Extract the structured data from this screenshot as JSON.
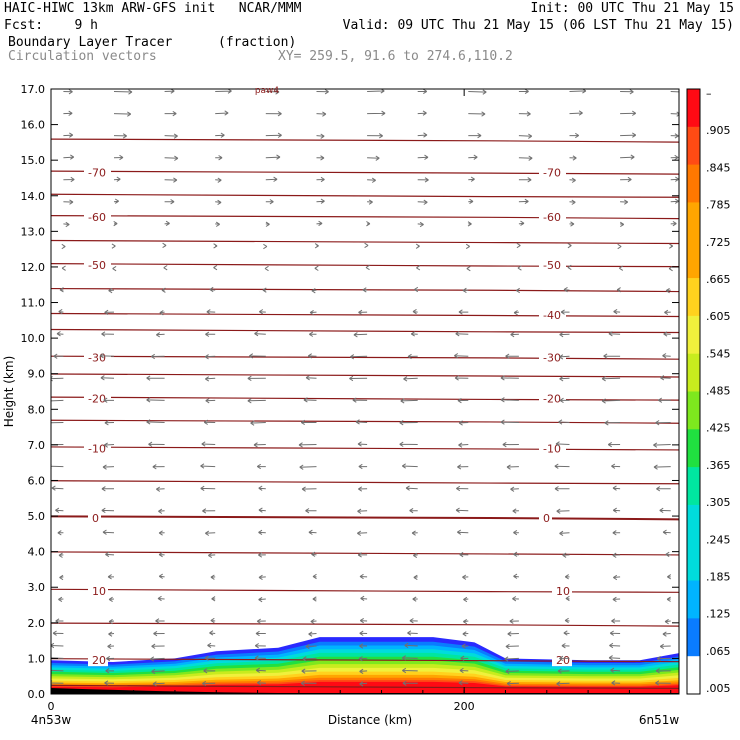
{
  "header": {
    "line1_left": "HAIC-HIWC 13km ARW-GFS init   NCAR/MMM",
    "line1_right": "Init: 00 UTC Thu 21 May 15",
    "line2_left": "Fcst:    9 h",
    "line2_right": "Valid: 09 UTC Thu 21 May 15 (06 LST Thu 21 May 15)",
    "field_name": "Boundary Layer Tracer",
    "field_units": "(fraction)",
    "vector_name": "Circulation vectors",
    "xy_range": "XY= 259.5, 91.6 to 274.6,110.2"
  },
  "colors": {
    "isotherm": "#8b1a1a",
    "vectors": "#707070",
    "ramp": [
      "#ffffff",
      "#2a2aff",
      "#0a7cff",
      "#00b4ff",
      "#00dcdc",
      "#00e6a0",
      "#20e040",
      "#7ee81e",
      "#c8ec1e",
      "#f0f03c",
      "#ffd21e",
      "#ffa500",
      "#ff7800",
      "#ff4b14",
      "#ff0a14"
    ]
  },
  "chart_data": {
    "type": "cross-section",
    "xlabel": "Distance (km)",
    "ylabel": "Height (km)",
    "xlim": [
      0,
      304
    ],
    "ylim": [
      0,
      17
    ],
    "x_ticks": [
      {
        "value": 0,
        "label": "0"
      },
      {
        "value": 200,
        "label": "200"
      }
    ],
    "x_end_labels": [
      "4n53w",
      "6n51w"
    ],
    "y_ticks": [
      "0.0",
      "1.0",
      "2.0",
      "3.0",
      "4.0",
      "5.0",
      "6.0",
      "7.0",
      "8.0",
      "9.0",
      "10.0",
      "11.0",
      "12.0",
      "13.0",
      "14.0",
      "15.0",
      "16.0",
      "17.0"
    ],
    "top_label": "paw4",
    "colorbar": {
      "labels": [
        "–",
        ".905",
        ".845",
        ".785",
        ".725",
        ".665",
        ".605",
        ".545",
        ".485",
        ".425",
        ".365",
        ".305",
        ".245",
        ".185",
        ".125",
        ".065",
        ".005"
      ],
      "range": [
        0.005,
        0.965
      ]
    },
    "isotherms": [
      {
        "height": 0.2,
        "label": "",
        "left": false,
        "right": false
      },
      {
        "height": 0.95,
        "label": "20",
        "left": true,
        "right": true
      },
      {
        "height": 1.95,
        "label": "",
        "left": false,
        "right": false
      },
      {
        "height": 2.9,
        "label": "10",
        "left": true,
        "right": true
      },
      {
        "height": 3.95,
        "label": "",
        "left": false,
        "right": false
      },
      {
        "height": 4.95,
        "label": "0",
        "left": true,
        "right": true
      },
      {
        "height": 5.95,
        "label": "",
        "left": false,
        "right": false
      },
      {
        "height": 6.9,
        "label": "-10",
        "left": true,
        "right": true
      },
      {
        "height": 7.65,
        "label": "",
        "left": false,
        "right": false
      },
      {
        "height": 8.3,
        "label": "-20",
        "left": true,
        "right": true
      },
      {
        "height": 8.95,
        "label": "",
        "left": false,
        "right": false
      },
      {
        "height": 9.45,
        "label": "-30",
        "left": true,
        "right": true
      },
      {
        "height": 10.2,
        "label": "",
        "left": false,
        "right": false
      },
      {
        "height": 10.65,
        "label": "-40",
        "left": false,
        "right": true
      },
      {
        "height": 11.35,
        "label": "",
        "left": false,
        "right": false
      },
      {
        "height": 12.05,
        "label": "-50",
        "left": true,
        "right": true
      },
      {
        "height": 12.7,
        "label": "",
        "left": false,
        "right": false
      },
      {
        "height": 13.4,
        "label": "-60",
        "left": true,
        "right": true
      },
      {
        "height": 14.0,
        "label": "",
        "left": false,
        "right": false
      },
      {
        "height": 14.65,
        "label": "-70",
        "left": true,
        "right": true
      },
      {
        "height": 15.55,
        "label": "",
        "left": false,
        "right": false
      }
    ],
    "boundary_layer_top": [
      {
        "x": 0,
        "top": 0.95
      },
      {
        "x": 30,
        "top": 0.9
      },
      {
        "x": 60,
        "top": 1.0
      },
      {
        "x": 80,
        "top": 1.2
      },
      {
        "x": 110,
        "top": 1.3
      },
      {
        "x": 130,
        "top": 1.6
      },
      {
        "x": 185,
        "top": 1.6
      },
      {
        "x": 205,
        "top": 1.45
      },
      {
        "x": 220,
        "top": 1.0
      },
      {
        "x": 260,
        "top": 0.95
      },
      {
        "x": 285,
        "top": 0.95
      },
      {
        "x": 304,
        "top": 1.15
      }
    ],
    "wind_profile": [
      {
        "height": 1.0,
        "u": -10
      },
      {
        "height": 2.0,
        "u": -6
      },
      {
        "height": 3.0,
        "u": -4
      },
      {
        "height": 5.0,
        "u": -8
      },
      {
        "height": 7.0,
        "u": -12
      },
      {
        "height": 9.0,
        "u": -13
      },
      {
        "height": 11.0,
        "u": -5
      },
      {
        "height": 12.5,
        "u": 1
      },
      {
        "height": 14.0,
        "u": 7
      },
      {
        "height": 16.5,
        "u": 12
      }
    ]
  }
}
